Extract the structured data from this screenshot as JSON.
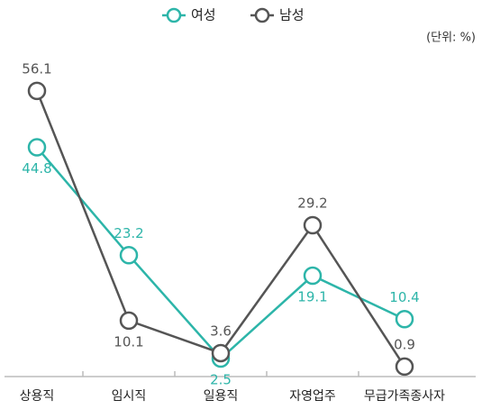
{
  "chart_data": {
    "type": "line",
    "categories": [
      "상용직",
      "임시직",
      "일용직",
      "자영업주",
      "무급가족종사자"
    ],
    "series": [
      {
        "name": "여성",
        "color": "#2db5a9",
        "values": [
          44.8,
          23.2,
          2.5,
          19.1,
          10.4
        ]
      },
      {
        "name": "남성",
        "color": "#555555",
        "values": [
          56.1,
          10.1,
          3.6,
          29.2,
          0.9
        ]
      }
    ],
    "annotation": "(단위: %)",
    "ylim": [
      -2,
      66
    ]
  }
}
